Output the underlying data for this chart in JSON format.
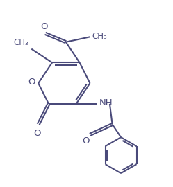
{
  "background_color": "#ffffff",
  "line_color": "#4a4a7a",
  "line_width": 1.5,
  "figsize": [
    2.49,
    2.7
  ],
  "dpi": 100,
  "xlim": [
    0,
    10
  ],
  "ylim": [
    0,
    10.8
  ]
}
